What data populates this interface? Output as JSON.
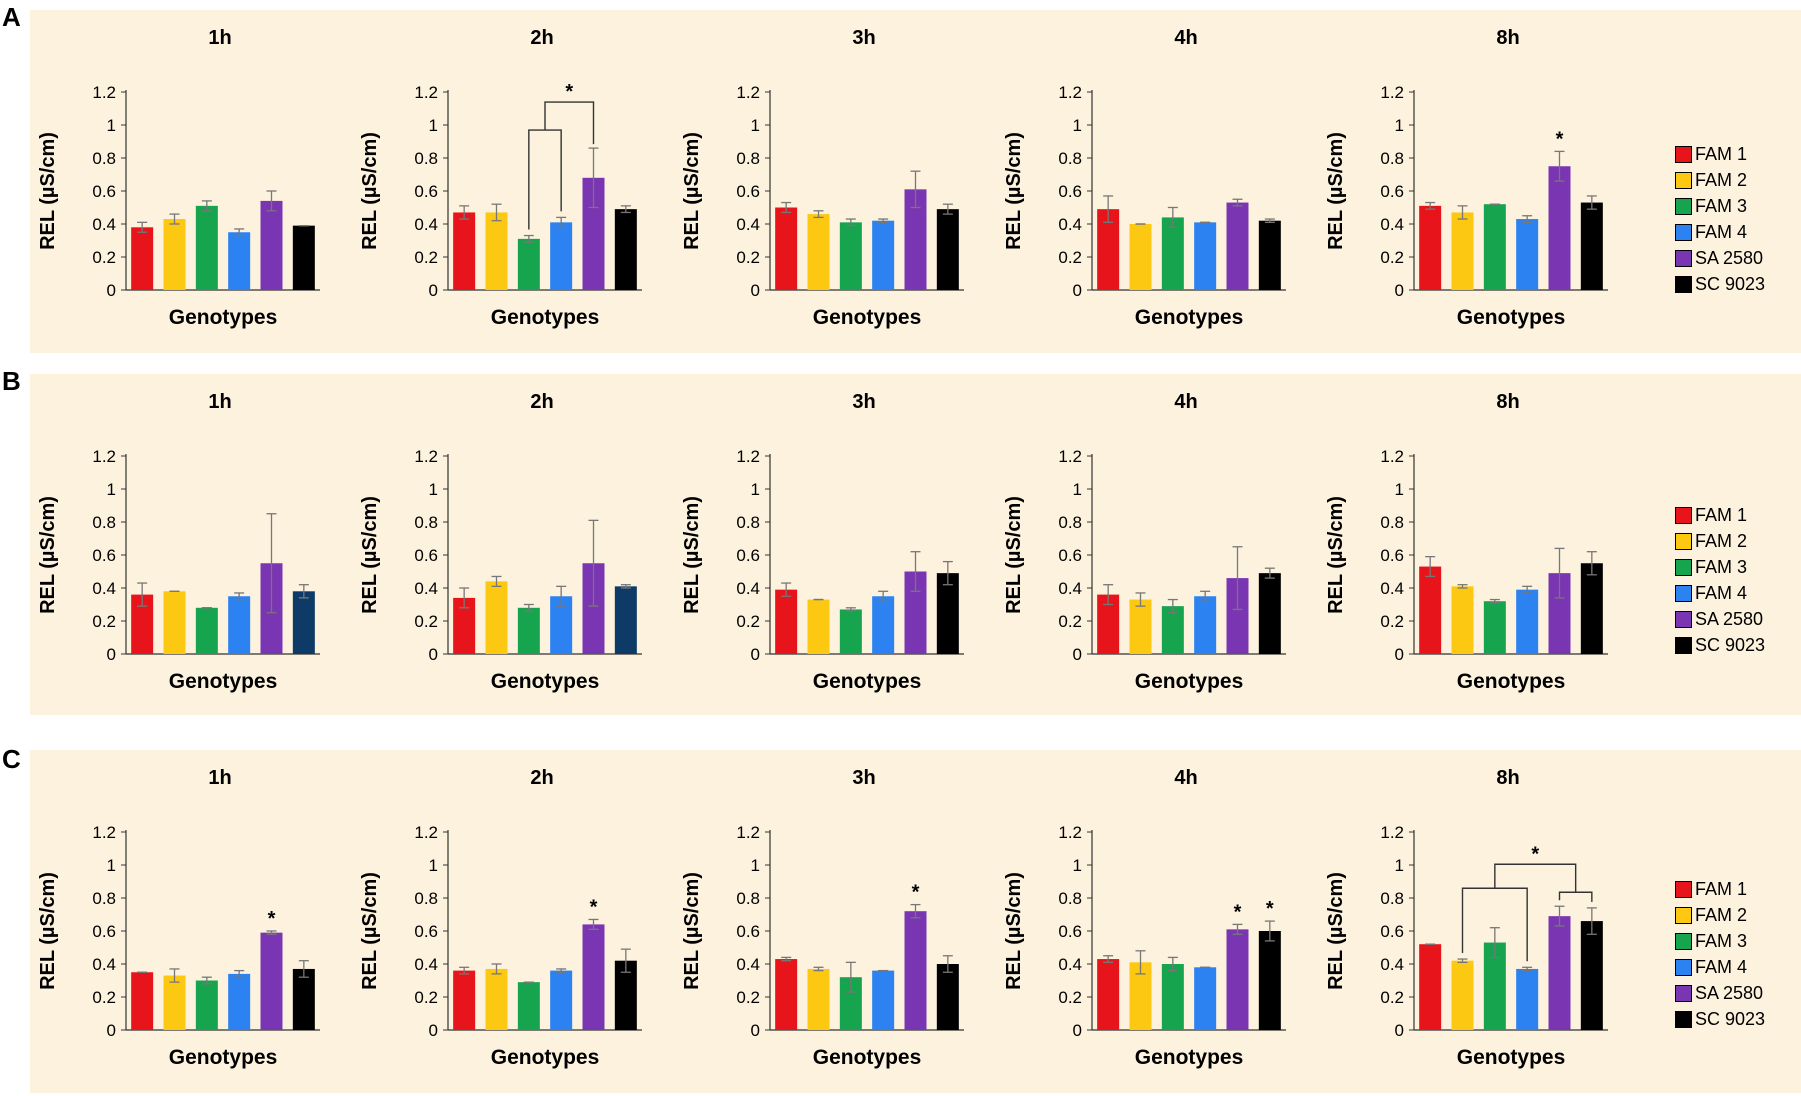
{
  "rows": [
    "A",
    "B",
    "C"
  ],
  "legend_title": "",
  "legend": [
    {
      "label": "FAM 1",
      "color": "#e8141c"
    },
    {
      "label": "FAM 2",
      "color": "#fcc812"
    },
    {
      "label": "FAM 3",
      "color": "#16a44e"
    },
    {
      "label": "FAM 4",
      "color": "#2b82f0"
    },
    {
      "label": "SA 2580",
      "color": "#7a35b2"
    },
    {
      "label": "SC 9023",
      "color": "#000000"
    }
  ],
  "chart_data": [
    {
      "type": "bar",
      "row": "A",
      "title": "1h",
      "xlabel": "Genotypes",
      "ylabel": "REL (µS/cm)",
      "ylim": [
        0,
        1.2
      ],
      "yticks": [
        "0",
        "0.2",
        "0.4",
        "0.6",
        "0.8",
        "1",
        "1.2"
      ],
      "categories": [
        "FAM 1",
        "FAM 2",
        "FAM 3",
        "FAM 4",
        "SA 2580",
        "SC 9023"
      ],
      "values": [
        0.38,
        0.43,
        0.51,
        0.35,
        0.54,
        0.39
      ],
      "errors": [
        0.03,
        0.03,
        0.03,
        0.02,
        0.06,
        0.0
      ],
      "significance": []
    },
    {
      "type": "bar",
      "row": "A",
      "title": "2h",
      "xlabel": "Genotypes",
      "ylabel": "REL (µS/cm)",
      "ylim": [
        0,
        1.2
      ],
      "yticks": [
        "0",
        "0.2",
        "0.4",
        "0.6",
        "0.8",
        "1",
        "1.2"
      ],
      "categories": [
        "FAM 1",
        "FAM 2",
        "FAM 3",
        "FAM 4",
        "SA 2580",
        "SC 9023"
      ],
      "values": [
        0.47,
        0.47,
        0.31,
        0.41,
        0.68,
        0.49
      ],
      "errors": [
        0.04,
        0.05,
        0.02,
        0.03,
        0.18,
        0.02
      ],
      "significance": [
        {
          "type": "bracket",
          "label": "*",
          "from": [
            2,
            3
          ],
          "to": 4
        }
      ]
    },
    {
      "type": "bar",
      "row": "A",
      "title": "3h",
      "xlabel": "Genotypes",
      "ylabel": "REL (µS/cm)",
      "ylim": [
        0,
        1.2
      ],
      "yticks": [
        "0",
        "0.2",
        "0.4",
        "0.6",
        "0.8",
        "1",
        "1.2"
      ],
      "categories": [
        "FAM 1",
        "FAM 2",
        "FAM 3",
        "FAM 4",
        "SA 2580",
        "SC 9023"
      ],
      "values": [
        0.5,
        0.46,
        0.41,
        0.42,
        0.61,
        0.49
      ],
      "errors": [
        0.03,
        0.02,
        0.02,
        0.01,
        0.11,
        0.03
      ],
      "significance": []
    },
    {
      "type": "bar",
      "row": "A",
      "title": "4h",
      "xlabel": "Genotypes",
      "ylabel": "REL (µS/cm)",
      "ylim": [
        0,
        1.2
      ],
      "yticks": [
        "0",
        "0.2",
        "0.4",
        "0.6",
        "0.8",
        "1",
        "1.2"
      ],
      "categories": [
        "FAM 1",
        "FAM 2",
        "FAM 3",
        "FAM 4",
        "SA 2580",
        "SC 9023"
      ],
      "values": [
        0.49,
        0.4,
        0.44,
        0.41,
        0.53,
        0.42
      ],
      "errors": [
        0.08,
        0.0,
        0.06,
        0.0,
        0.02,
        0.01
      ],
      "significance": []
    },
    {
      "type": "bar",
      "row": "A",
      "title": "8h",
      "xlabel": "Genotypes",
      "ylabel": "REL (µS/cm)",
      "ylim": [
        0,
        1.2
      ],
      "yticks": [
        "0",
        "0.2",
        "0.4",
        "0.6",
        "0.8",
        "1",
        "1.2"
      ],
      "categories": [
        "FAM 1",
        "FAM 2",
        "FAM 3",
        "FAM 4",
        "SA 2580",
        "SC 9023"
      ],
      "values": [
        0.51,
        0.47,
        0.52,
        0.43,
        0.75,
        0.53
      ],
      "errors": [
        0.02,
        0.04,
        0.0,
        0.02,
        0.09,
        0.04
      ],
      "significance": [
        {
          "type": "star",
          "label": "*",
          "bar": 4
        }
      ]
    },
    {
      "type": "bar",
      "row": "B",
      "title": "1h",
      "xlabel": "Genotypes",
      "ylabel": "REL (µS/cm)",
      "ylim": [
        0,
        1.2
      ],
      "yticks": [
        "0",
        "0.2",
        "0.4",
        "0.6",
        "0.8",
        "1",
        "1.2"
      ],
      "categories": [
        "FAM 1",
        "FAM 2",
        "FAM 3",
        "FAM 4",
        "SA 2580",
        "SC 9023"
      ],
      "values": [
        0.36,
        0.38,
        0.28,
        0.35,
        0.55,
        0.38
      ],
      "errors": [
        0.07,
        0.0,
        0.0,
        0.02,
        0.3,
        0.04
      ],
      "bar_colors": [
        "#e8141c",
        "#fcc812",
        "#16a44e",
        "#2b82f0",
        "#7a35b2",
        "#0d3a66"
      ],
      "significance": []
    },
    {
      "type": "bar",
      "row": "B",
      "title": "2h",
      "xlabel": "Genotypes",
      "ylabel": "REL (µS/cm)",
      "ylim": [
        0,
        1.2
      ],
      "yticks": [
        "0",
        "0.2",
        "0.4",
        "0.6",
        "0.8",
        "1",
        "1.2"
      ],
      "categories": [
        "FAM 1",
        "FAM 2",
        "FAM 3",
        "FAM 4",
        "SA 2580",
        "SC 9023"
      ],
      "values": [
        0.34,
        0.44,
        0.28,
        0.35,
        0.55,
        0.41
      ],
      "errors": [
        0.06,
        0.03,
        0.02,
        0.06,
        0.26,
        0.01
      ],
      "bar_colors": [
        "#e8141c",
        "#fcc812",
        "#16a44e",
        "#2b82f0",
        "#7a35b2",
        "#0d3a66"
      ],
      "significance": []
    },
    {
      "type": "bar",
      "row": "B",
      "title": "3h",
      "xlabel": "Genotypes",
      "ylabel": "REL (µS/cm)",
      "ylim": [
        0,
        1.2
      ],
      "yticks": [
        "0",
        "0.2",
        "0.4",
        "0.6",
        "0.8",
        "1",
        "1.2"
      ],
      "categories": [
        "FAM 1",
        "FAM 2",
        "FAM 3",
        "FAM 4",
        "SA 2580",
        "SC 9023"
      ],
      "values": [
        0.39,
        0.33,
        0.27,
        0.35,
        0.5,
        0.49
      ],
      "errors": [
        0.04,
        0.0,
        0.01,
        0.03,
        0.12,
        0.07
      ],
      "significance": []
    },
    {
      "type": "bar",
      "row": "B",
      "title": "4h",
      "xlabel": "Genotypes",
      "ylabel": "REL (µS/cm)",
      "ylim": [
        0,
        1.2
      ],
      "yticks": [
        "0",
        "0.2",
        "0.4",
        "0.6",
        "0.8",
        "1",
        "1.2"
      ],
      "categories": [
        "FAM 1",
        "FAM 2",
        "FAM 3",
        "FAM 4",
        "SA 2580",
        "SC 9023"
      ],
      "values": [
        0.36,
        0.33,
        0.29,
        0.35,
        0.46,
        0.49
      ],
      "errors": [
        0.06,
        0.04,
        0.04,
        0.03,
        0.19,
        0.03
      ],
      "significance": []
    },
    {
      "type": "bar",
      "row": "B",
      "title": "8h",
      "xlabel": "Genotypes",
      "ylabel": "REL (µS/cm)",
      "ylim": [
        0,
        1.2
      ],
      "yticks": [
        "0",
        "0.2",
        "0.4",
        "0.6",
        "0.8",
        "1",
        "1.2"
      ],
      "categories": [
        "FAM 1",
        "FAM 2",
        "FAM 3",
        "FAM 4",
        "SA 2580",
        "SC 9023"
      ],
      "values": [
        0.53,
        0.41,
        0.32,
        0.39,
        0.49,
        0.55
      ],
      "errors": [
        0.06,
        0.01,
        0.01,
        0.02,
        0.15,
        0.07
      ],
      "significance": []
    },
    {
      "type": "bar",
      "row": "C",
      "title": "1h",
      "xlabel": "Genotypes",
      "ylabel": "REL (µS/cm)",
      "ylim": [
        0,
        1.2
      ],
      "yticks": [
        "0",
        "0.2",
        "0.4",
        "0.6",
        "0.8",
        "1",
        "1.2"
      ],
      "categories": [
        "FAM 1",
        "FAM 2",
        "FAM 3",
        "FAM 4",
        "SA 2580",
        "SC 9023"
      ],
      "values": [
        0.35,
        0.33,
        0.3,
        0.34,
        0.59,
        0.37
      ],
      "errors": [
        0.0,
        0.04,
        0.02,
        0.02,
        0.01,
        0.05
      ],
      "significance": [
        {
          "type": "star",
          "label": "*",
          "bar": 4
        }
      ]
    },
    {
      "type": "bar",
      "row": "C",
      "title": "2h",
      "xlabel": "Genotypes",
      "ylabel": "REL (µS/cm)",
      "ylim": [
        0,
        1.2
      ],
      "yticks": [
        "0",
        "0.2",
        "0.4",
        "0.6",
        "0.8",
        "1",
        "1.2"
      ],
      "categories": [
        "FAM 1",
        "FAM 2",
        "FAM 3",
        "FAM 4",
        "SA 2580",
        "SC 9023"
      ],
      "values": [
        0.36,
        0.37,
        0.29,
        0.36,
        0.64,
        0.42
      ],
      "errors": [
        0.02,
        0.03,
        0.0,
        0.01,
        0.03,
        0.07
      ],
      "significance": [
        {
          "type": "star",
          "label": "*",
          "bar": 4
        }
      ]
    },
    {
      "type": "bar",
      "row": "C",
      "title": "3h",
      "xlabel": "Genotypes",
      "ylabel": "REL (µS/cm)",
      "ylim": [
        0,
        1.2
      ],
      "yticks": [
        "0",
        "0.2",
        "0.4",
        "0.6",
        "0.8",
        "1",
        "1.2"
      ],
      "categories": [
        "FAM 1",
        "FAM 2",
        "FAM 3",
        "FAM 4",
        "SA 2580",
        "SC 9023"
      ],
      "values": [
        0.43,
        0.37,
        0.32,
        0.36,
        0.72,
        0.4
      ],
      "errors": [
        0.01,
        0.01,
        0.09,
        0.0,
        0.04,
        0.05
      ],
      "significance": [
        {
          "type": "star",
          "label": "*",
          "bar": 4
        }
      ]
    },
    {
      "type": "bar",
      "row": "C",
      "title": "4h",
      "xlabel": "Genotypes",
      "ylabel": "REL (µS/cm)",
      "ylim": [
        0,
        1.2
      ],
      "yticks": [
        "0",
        "0.2",
        "0.4",
        "0.6",
        "0.8",
        "1",
        "1.2"
      ],
      "categories": [
        "FAM 1",
        "FAM 2",
        "FAM 3",
        "FAM 4",
        "SA 2580",
        "SC 9023"
      ],
      "values": [
        0.43,
        0.41,
        0.4,
        0.38,
        0.61,
        0.6
      ],
      "errors": [
        0.02,
        0.07,
        0.04,
        0.0,
        0.03,
        0.06
      ],
      "significance": [
        {
          "type": "star",
          "label": "*",
          "bar": 4
        },
        {
          "type": "star",
          "label": "*",
          "bar": 5
        }
      ]
    },
    {
      "type": "bar",
      "row": "C",
      "title": "8h",
      "xlabel": "Genotypes",
      "ylabel": "REL (µS/cm)",
      "ylim": [
        0,
        1.2
      ],
      "yticks": [
        "0",
        "0.2",
        "0.4",
        "0.6",
        "0.8",
        "1",
        "1.2"
      ],
      "categories": [
        "FAM 1",
        "FAM 2",
        "FAM 3",
        "FAM 4",
        "SA 2580",
        "SC 9023"
      ],
      "values": [
        0.52,
        0.42,
        0.53,
        0.37,
        0.69,
        0.66
      ],
      "errors": [
        0.0,
        0.01,
        0.09,
        0.01,
        0.06,
        0.08
      ],
      "significance": [
        {
          "type": "bracket",
          "label": "*",
          "from": [
            1,
            3
          ],
          "to": [
            4,
            5
          ]
        }
      ]
    }
  ]
}
